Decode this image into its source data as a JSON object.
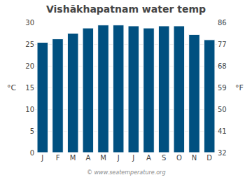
{
  "chart_data": {
    "type": "bar",
    "title": "Vishākhapatnam water temp",
    "categories": [
      "J",
      "F",
      "M",
      "A",
      "M",
      "J",
      "J",
      "A",
      "S",
      "O",
      "N",
      "D"
    ],
    "values": [
      25.4,
      26.2,
      27.5,
      28.7,
      29.4,
      29.4,
      29.2,
      28.7,
      29.2,
      29.2,
      27.2,
      26.0
    ],
    "color": "#005080",
    "ylabel": "°C",
    "ylim": [
      0,
      30
    ],
    "yticks": [
      0,
      5,
      10,
      15,
      20,
      25,
      30
    ],
    "y2label": "°F",
    "y2lim": [
      32,
      86
    ],
    "y2ticks": [
      32,
      41,
      50,
      59,
      68,
      77,
      86
    ],
    "grid": true,
    "annotations": [
      "© www.seatemperature.org"
    ]
  }
}
